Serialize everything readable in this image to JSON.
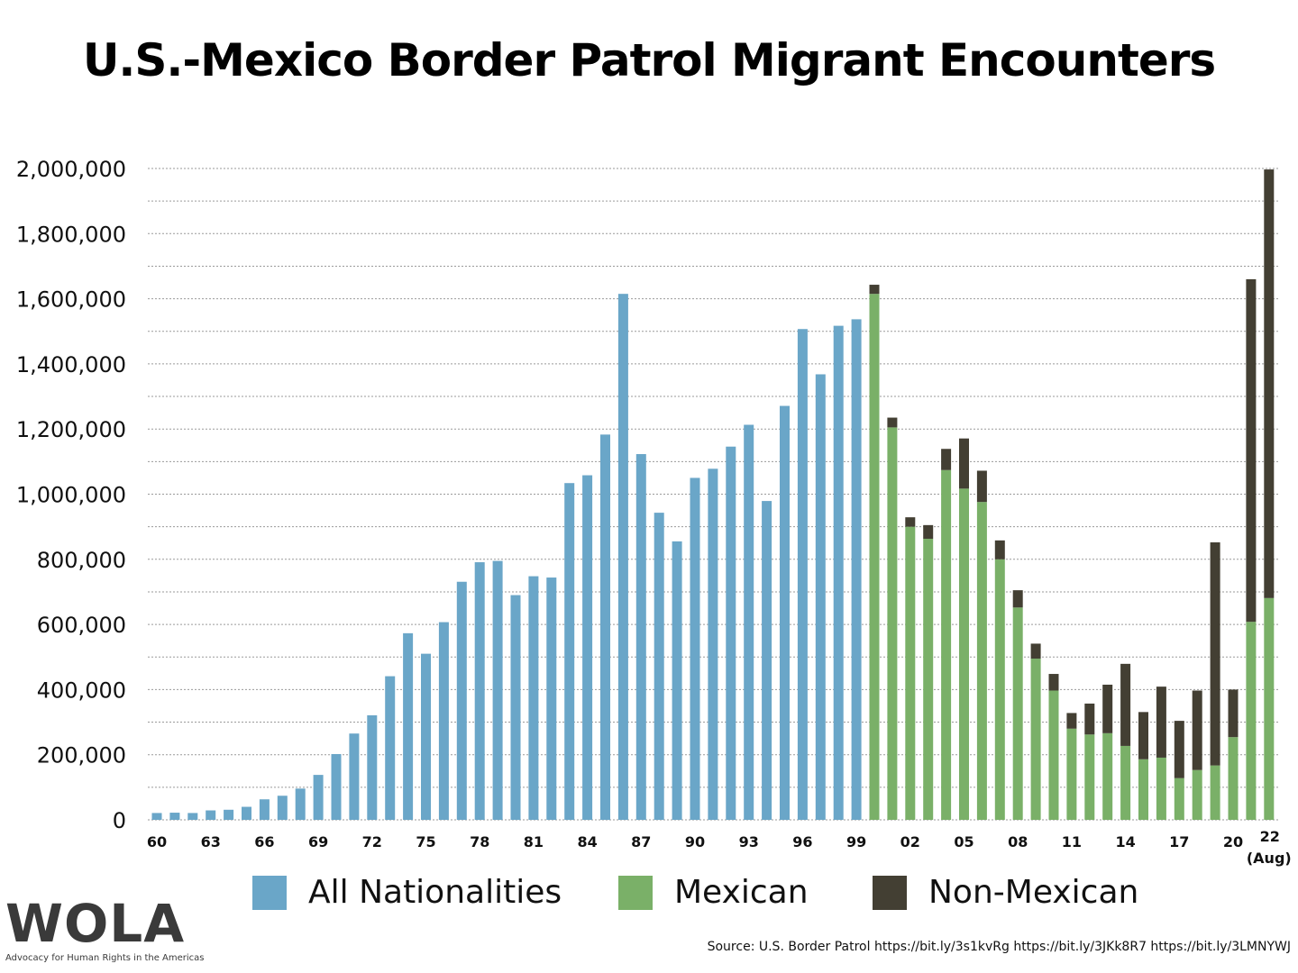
{
  "title": "U.S.-Mexico Border Patrol Migrant Encounters",
  "source": "Source: U.S. Border Patrol https://bit.ly/3s1kvRg  https://bit.ly/3JKk8R7 https://bit.ly/3LMNYWJ",
  "logo": {
    "name": "WOLA",
    "tagline": "Advocacy for Human Rights in the Americas"
  },
  "colors": {
    "all": "#6aa6c8",
    "mexican": "#7ab068",
    "non_mexican": "#433f33"
  },
  "chart_data": {
    "type": "bar",
    "title": "U.S.-Mexico Border Patrol Migrant Encounters",
    "xlabel": "",
    "ylabel": "",
    "ylim": [
      0,
      2000000
    ],
    "yticks": [
      0,
      200000,
      400000,
      600000,
      800000,
      1000000,
      1200000,
      1400000,
      1600000,
      1800000,
      2000000
    ],
    "ytick_labels": [
      "0",
      "200,000",
      "400,000",
      "600,000",
      "800,000",
      "1,000,000",
      "1,200,000",
      "1,400,000",
      "1,600,000",
      "1,800,000",
      "2,000,000"
    ],
    "grid": "horizontal dashed every 100,000",
    "legend": {
      "placement": "bottom",
      "entries": [
        "All Nationalities",
        "Mexican",
        "Non-Mexican"
      ]
    },
    "x_tick_labels": [
      {
        "year": 1960,
        "label": "60"
      },
      {
        "year": 1963,
        "label": "63"
      },
      {
        "year": 1966,
        "label": "66"
      },
      {
        "year": 1969,
        "label": "69"
      },
      {
        "year": 1972,
        "label": "72"
      },
      {
        "year": 1975,
        "label": "75"
      },
      {
        "year": 1978,
        "label": "78"
      },
      {
        "year": 1981,
        "label": "81"
      },
      {
        "year": 1984,
        "label": "84"
      },
      {
        "year": 1987,
        "label": "87"
      },
      {
        "year": 1990,
        "label": "90"
      },
      {
        "year": 1993,
        "label": "93"
      },
      {
        "year": 1996,
        "label": "96"
      },
      {
        "year": 1999,
        "label": "99"
      },
      {
        "year": 2002,
        "label": "02"
      },
      {
        "year": 2005,
        "label": "05"
      },
      {
        "year": 2008,
        "label": "08"
      },
      {
        "year": 2011,
        "label": "11"
      },
      {
        "year": 2014,
        "label": "14"
      },
      {
        "year": 2017,
        "label": "17"
      },
      {
        "year": 2020,
        "label": "20"
      },
      {
        "year": 2022,
        "label": "22",
        "sublabel": "(Aug)"
      }
    ],
    "series": [
      {
        "name": "All Nationalities",
        "years": [
          1960,
          1961,
          1962,
          1963,
          1964,
          1965,
          1966,
          1967,
          1968,
          1969,
          1970,
          1971,
          1972,
          1973,
          1974,
          1975,
          1976,
          1977,
          1978,
          1979,
          1980,
          1981,
          1982,
          1983,
          1984,
          1985,
          1986,
          1987,
          1988,
          1989,
          1990,
          1991,
          1992,
          1993,
          1994,
          1995,
          1996,
          1997,
          1998,
          1999
        ],
        "values": [
          21000,
          22000,
          21000,
          29000,
          31000,
          40000,
          63000,
          74000,
          96000,
          138000,
          202000,
          265000,
          321000,
          441000,
          573000,
          510000,
          607000,
          731000,
          791000,
          795000,
          690000,
          748000,
          744000,
          1034000,
          1058000,
          1183000,
          1615000,
          1123000,
          943000,
          855000,
          1050000,
          1078000,
          1146000,
          1213000,
          979000,
          1271000,
          1507000,
          1368000,
          1517000,
          1537000
        ]
      },
      {
        "name": "Mexican",
        "years": [
          2000,
          2001,
          2002,
          2003,
          2004,
          2005,
          2006,
          2007,
          2008,
          2009,
          2010,
          2011,
          2012,
          2013,
          2014,
          2015,
          2016,
          2017,
          2018,
          2019,
          2020,
          2021,
          2022
        ],
        "values": [
          1615000,
          1205000,
          900000,
          863000,
          1074000,
          1017000,
          976000,
          800000,
          652000,
          495000,
          397000,
          280000,
          262000,
          266000,
          227000,
          186000,
          191000,
          128000,
          153000,
          167000,
          254000,
          608000,
          681000
        ]
      },
      {
        "name": "Non-Mexican",
        "years": [
          2000,
          2001,
          2002,
          2003,
          2004,
          2005,
          2006,
          2007,
          2008,
          2009,
          2010,
          2011,
          2012,
          2013,
          2014,
          2015,
          2016,
          2017,
          2018,
          2019,
          2020,
          2021,
          2022
        ],
        "values": [
          28000,
          30000,
          29000,
          42000,
          65000,
          154000,
          96000,
          58000,
          53000,
          46000,
          51000,
          48000,
          95000,
          149000,
          252000,
          145000,
          218000,
          176000,
          244000,
          685000,
          146000,
          1052000,
          1316000
        ]
      }
    ]
  }
}
